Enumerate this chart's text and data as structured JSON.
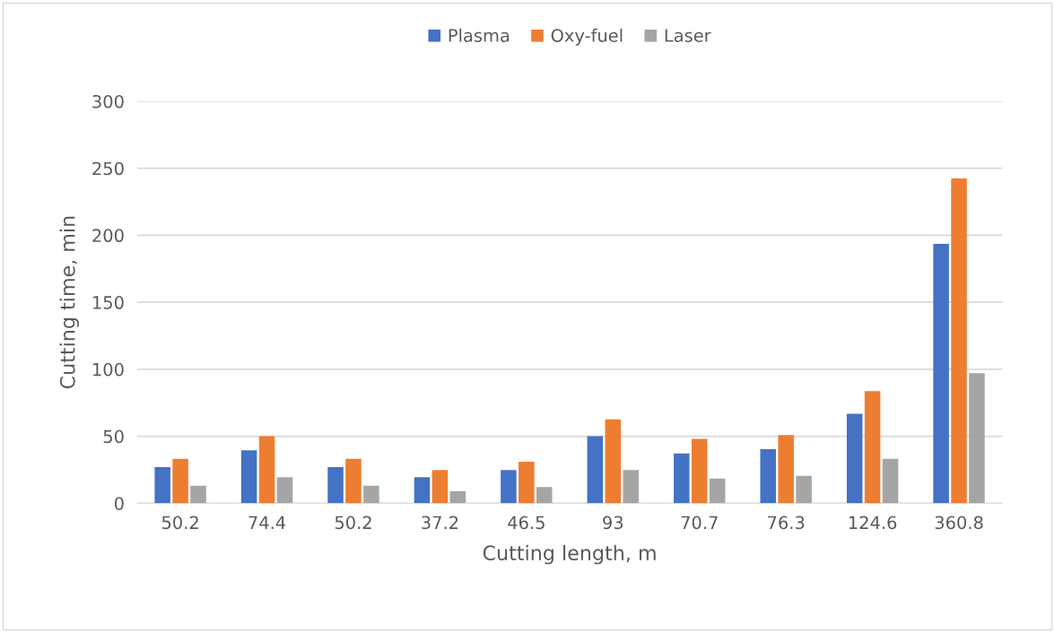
{
  "chart_data": {
    "type": "bar",
    "xlabel": "Cutting length, m",
    "ylabel": "Cutting time, min",
    "categories": [
      "50.2",
      "74.4",
      "50.2",
      "37.2",
      "46.5",
      "93",
      "70.7",
      "76.3",
      "124.6",
      "360.8"
    ],
    "series": [
      {
        "name": "Plasma",
        "color": "#4472c4",
        "values": [
          27,
          39.5,
          27,
          19.5,
          24.7,
          50,
          37.2,
          40.4,
          66.8,
          193.5
        ]
      },
      {
        "name": "Oxy-fuel",
        "color": "#ed7d31",
        "values": [
          33.2,
          50,
          33.2,
          24.7,
          31,
          62.6,
          48,
          50.9,
          83.6,
          242.4
        ]
      },
      {
        "name": "Laser",
        "color": "#a5a5a5",
        "values": [
          13,
          19.5,
          13,
          9,
          12.1,
          24.7,
          18.4,
          20.4,
          33.2,
          97.1
        ]
      }
    ],
    "ylim": [
      0,
      300
    ],
    "yticks": [
      0,
      50,
      100,
      150,
      200,
      250,
      300
    ],
    "grid": "y",
    "legend": "top"
  }
}
